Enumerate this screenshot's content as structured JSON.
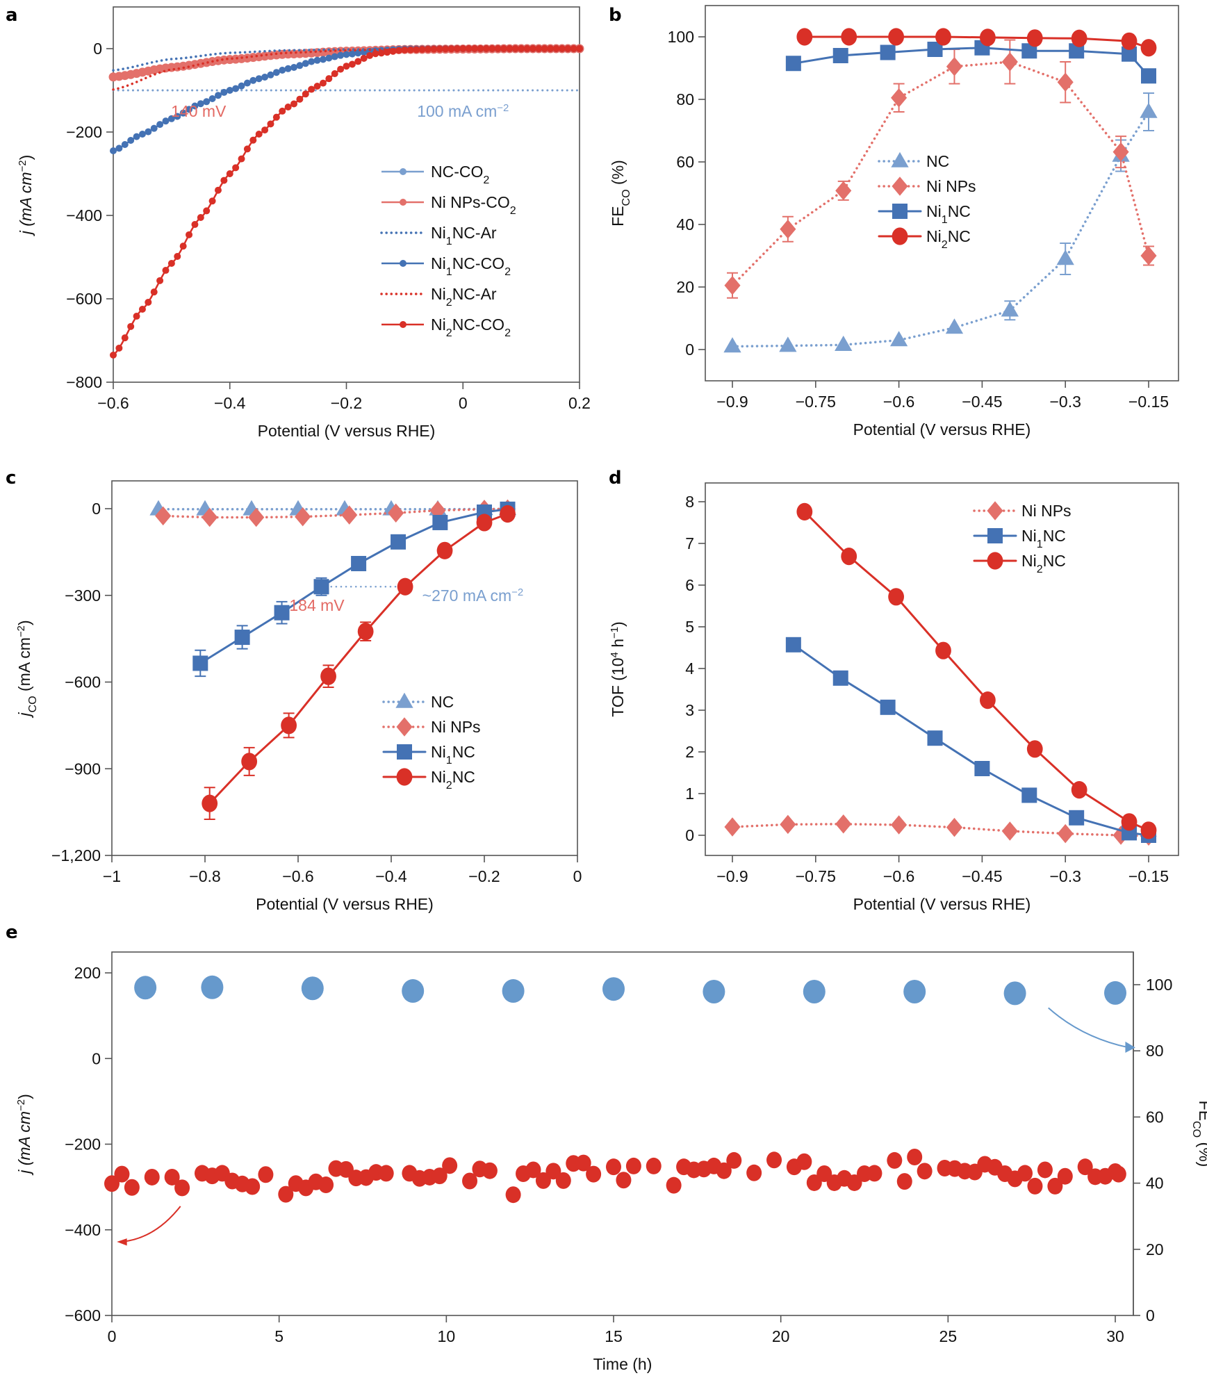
{
  "colors": {
    "nc": "#7a9fcf",
    "ni_nps": "#e3706a",
    "ni1nc": "#4472b4",
    "ni2nc": "#d93027",
    "fe_points": "#6699cc",
    "j_points": "#d93027",
    "annot_red": "#e36a64",
    "annot_blue": "#7a9fcf"
  },
  "chart_data": [
    {
      "panel": "a",
      "type": "line",
      "xlabel": "Potential (V versus RHE)",
      "ylabel": "j (mA cm⁻²)",
      "xlim": [
        -0.6,
        0.2
      ],
      "ylim": [
        -800,
        100
      ],
      "xticks": [
        -0.6,
        -0.4,
        -0.2,
        0,
        0.2
      ],
      "xtick_labels": [
        "−0.6",
        "−0.4",
        "−0.2",
        "0",
        "0.2"
      ],
      "yticks": [
        0,
        -200,
        -400,
        -600,
        -800
      ],
      "ytick_labels": [
        "0",
        "−200",
        "−400",
        "−600",
        "−800"
      ],
      "legend_position": "center-right",
      "annotations": [
        {
          "text": "140 mV",
          "x": -0.4,
          "y": -150,
          "color": "annot_red"
        },
        {
          "text": "100 mA cm⁻²",
          "x": 0.0,
          "y": -150,
          "color": "annot_blue"
        }
      ],
      "reference_line": {
        "y": -100,
        "style": "dotted",
        "color": "annot_blue"
      },
      "series": [
        {
          "name": "NC-CO₂",
          "style": "markers-line",
          "color": "nc",
          "x": [
            -0.6,
            -0.5,
            -0.4,
            -0.3,
            -0.2,
            -0.1,
            0,
            0.1,
            0.2
          ],
          "y": [
            -70,
            -45,
            -25,
            -12,
            -5,
            -2,
            -1,
            0,
            0
          ]
        },
        {
          "name": "Ni NPs-CO₂",
          "style": "markers-line",
          "color": "ni_nps",
          "x": [
            -0.6,
            -0.5,
            -0.4,
            -0.3,
            -0.2,
            -0.1,
            0,
            0.1,
            0.2
          ],
          "y": [
            -68,
            -45,
            -26,
            -13,
            -6,
            -2,
            -1,
            0,
            0
          ]
        },
        {
          "name": "Ni₁NC-Ar",
          "style": "dotted",
          "color": "ni1nc",
          "x": [
            -0.6,
            -0.5,
            -0.4,
            -0.3,
            -0.2,
            -0.1,
            0,
            0.1,
            0.2
          ],
          "y": [
            -52,
            -25,
            -10,
            -4,
            -2,
            -1,
            0,
            0,
            0
          ]
        },
        {
          "name": "Ni₁NC-CO₂",
          "style": "markers-line",
          "color": "ni1nc",
          "x": [
            -0.6,
            -0.55,
            -0.5,
            -0.45,
            -0.4,
            -0.35,
            -0.3,
            -0.25,
            -0.2,
            -0.15,
            -0.1,
            0,
            0.1,
            0.2
          ],
          "y": [
            -245,
            -205,
            -168,
            -132,
            -100,
            -72,
            -48,
            -28,
            -14,
            -5,
            -1,
            0,
            0,
            0
          ]
        },
        {
          "name": "Ni₂NC-Ar",
          "style": "dotted",
          "color": "ni2nc",
          "x": [
            -0.6,
            -0.5,
            -0.4,
            -0.3,
            -0.2,
            -0.1,
            0,
            0.1,
            0.2
          ],
          "y": [
            -98,
            -50,
            -24,
            -10,
            -4,
            -1,
            0,
            0,
            0
          ]
        },
        {
          "name": "Ni₂NC-CO₂",
          "style": "markers-line",
          "color": "ni2nc",
          "x": [
            -0.6,
            -0.55,
            -0.5,
            -0.45,
            -0.4,
            -0.35,
            -0.3,
            -0.25,
            -0.2,
            -0.15,
            -0.1,
            -0.05,
            0,
            0.1,
            0.2
          ],
          "y": [
            -735,
            -625,
            -515,
            -405,
            -300,
            -205,
            -140,
            -90,
            -42,
            -12,
            -3,
            -1,
            0,
            0,
            0
          ]
        }
      ]
    },
    {
      "panel": "b",
      "type": "line",
      "xlabel": "Potential (V versus RHE)",
      "ylabel": "FE_CO (%)",
      "xlim": [
        -0.97,
        -0.12
      ],
      "ylim": [
        -10,
        110
      ],
      "xticks": [
        -0.9,
        -0.75,
        -0.6,
        -0.45,
        -0.3,
        -0.15
      ],
      "xtick_labels": [
        "−0.9",
        "−0.75",
        "−0.6",
        "−0.45",
        "−0.3",
        "−0.15"
      ],
      "yticks": [
        0,
        20,
        40,
        60,
        80,
        100
      ],
      "ytick_labels": [
        "0",
        "20",
        "40",
        "60",
        "80",
        "100"
      ],
      "legend_position": "center",
      "series": [
        {
          "name": "NC",
          "marker": "triangle",
          "style": "dotted",
          "color": "nc",
          "x": [
            -0.9,
            -0.8,
            -0.7,
            -0.6,
            -0.5,
            -0.4,
            -0.3,
            -0.2,
            -0.15
          ],
          "y": [
            1,
            1.2,
            1.5,
            3,
            7,
            12.5,
            29,
            62,
            76
          ],
          "err": [
            0,
            0,
            0,
            0,
            0,
            3,
            5,
            5,
            6
          ]
        },
        {
          "name": "Ni NPs",
          "marker": "diamond",
          "style": "dotted",
          "color": "ni_nps",
          "x": [
            -0.9,
            -0.8,
            -0.7,
            -0.6,
            -0.5,
            -0.4,
            -0.3,
            -0.2,
            -0.15
          ],
          "y": [
            20.5,
            38.5,
            50.8,
            80.5,
            90.5,
            92,
            85.5,
            63.2,
            30
          ],
          "err": [
            4,
            4,
            3,
            4.5,
            5.5,
            7,
            6.5,
            5,
            3
          ]
        },
        {
          "name": "Ni₁NC",
          "marker": "square",
          "style": "solid",
          "color": "ni1nc",
          "x": [
            -0.79,
            -0.705,
            -0.62,
            -0.535,
            -0.45,
            -0.365,
            -0.28,
            -0.185,
            -0.15
          ],
          "y": [
            91.5,
            94,
            95,
            96,
            96.5,
            95.5,
            95.5,
            94.5,
            87.5
          ],
          "err": [
            0,
            0,
            0,
            0,
            0,
            0,
            0,
            0,
            0
          ]
        },
        {
          "name": "Ni₂NC",
          "marker": "circle",
          "style": "solid",
          "color": "ni2nc",
          "x": [
            -0.77,
            -0.69,
            -0.605,
            -0.52,
            -0.44,
            -0.355,
            -0.275,
            -0.185,
            -0.15
          ],
          "y": [
            100,
            100,
            100,
            100,
            99.8,
            99.6,
            99.5,
            98.6,
            96.5
          ],
          "err": [
            0,
            0,
            0,
            0,
            0,
            0,
            0,
            0,
            0
          ]
        }
      ]
    },
    {
      "panel": "c",
      "type": "line",
      "xlabel": "Potential (V versus RHE)",
      "ylabel": "j_CO (mA cm⁻²)",
      "xlim": [
        -1,
        0
      ],
      "ylim": [
        -1200,
        130
      ],
      "xticks": [
        -1,
        -0.8,
        -0.6,
        -0.4,
        -0.2,
        0
      ],
      "xtick_labels": [
        "−1",
        "−0.8",
        "−0.6",
        "−0.4",
        "−0.2",
        "0"
      ],
      "yticks": [
        0,
        -300,
        -600,
        -900,
        -1200
      ],
      "ytick_labels": [
        "0",
        "−300",
        "−600",
        "−900",
        "−1,200"
      ],
      "legend_position": "bottom-right",
      "annotations": [
        {
          "text": "184 mV",
          "x": -0.5,
          "y": -330,
          "color": "annot_red"
        },
        {
          "text": "~270 mA cm⁻²",
          "x": -0.18,
          "y": -300,
          "color": "annot_blue"
        }
      ],
      "reference_line": {
        "y": -270,
        "x_from": -0.55,
        "x_to": -0.37,
        "style": "dotted",
        "color": "annot_blue"
      },
      "series": [
        {
          "name": "NC",
          "marker": "triangle",
          "style": "dotted",
          "color": "nc",
          "x": [
            -0.9,
            -0.8,
            -0.7,
            -0.6,
            -0.5,
            -0.4,
            -0.3,
            -0.2,
            -0.15
          ],
          "y": [
            -2,
            -2,
            -2,
            -2,
            -2,
            -2,
            -2,
            -1,
            -1
          ],
          "err": [
            0,
            0,
            0,
            0,
            0,
            0,
            0,
            0,
            0
          ]
        },
        {
          "name": "Ni NPs",
          "marker": "diamond",
          "style": "dotted",
          "color": "ni_nps",
          "x": [
            -0.89,
            -0.79,
            -0.69,
            -0.59,
            -0.49,
            -0.39,
            -0.3,
            -0.2,
            -0.15
          ],
          "y": [
            -25,
            -30,
            -30,
            -28,
            -22,
            -15,
            -6,
            -2,
            -1
          ],
          "err": [
            0,
            0,
            0,
            0,
            0,
            0,
            0,
            0,
            0
          ]
        },
        {
          "name": "Ni₁NC",
          "marker": "square",
          "style": "solid",
          "color": "ni1nc",
          "x": [
            -0.81,
            -0.72,
            -0.635,
            -0.55,
            -0.47,
            -0.385,
            -0.295,
            -0.2,
            -0.15
          ],
          "y": [
            -535,
            -445,
            -360,
            -270,
            -190,
            -115,
            -48,
            -12,
            -2
          ],
          "err": [
            45,
            40,
            38,
            30,
            0,
            0,
            0,
            0,
            0
          ]
        },
        {
          "name": "Ni₂NC",
          "marker": "circle",
          "style": "solid",
          "color": "ni2nc",
          "x": [
            -0.79,
            -0.705,
            -0.62,
            -0.535,
            -0.455,
            -0.37,
            -0.285,
            -0.2,
            -0.15
          ],
          "y": [
            -1020,
            -875,
            -750,
            -580,
            -425,
            -270,
            -145,
            -48,
            -18
          ],
          "err": [
            55,
            48,
            42,
            38,
            32,
            0,
            0,
            0,
            0
          ]
        }
      ]
    },
    {
      "panel": "d",
      "type": "line",
      "xlabel": "Potential (V versus RHE)",
      "ylabel": "TOF (10⁴ h⁻¹)",
      "xlim": [
        -0.97,
        -0.12
      ],
      "ylim": [
        -0.5,
        8.5
      ],
      "xticks": [
        -0.9,
        -0.75,
        -0.6,
        -0.45,
        -0.3,
        -0.15
      ],
      "xtick_labels": [
        "−0.9",
        "−0.75",
        "−0.6",
        "−0.45",
        "−0.3",
        "−0.15"
      ],
      "yticks": [
        0,
        1,
        2,
        3,
        4,
        5,
        6,
        7,
        8
      ],
      "ytick_labels": [
        "0",
        "1",
        "2",
        "3",
        "4",
        "5",
        "6",
        "7",
        "8"
      ],
      "legend_position": "top-right",
      "series": [
        {
          "name": "Ni NPs",
          "marker": "diamond",
          "style": "dotted",
          "color": "ni_nps",
          "x": [
            -0.9,
            -0.8,
            -0.7,
            -0.6,
            -0.5,
            -0.4,
            -0.3,
            -0.2,
            -0.15
          ],
          "y": [
            0.2,
            0.26,
            0.27,
            0.25,
            0.19,
            0.1,
            0.04,
            0.0,
            -0.02
          ]
        },
        {
          "name": "Ni₁NC",
          "marker": "square",
          "style": "solid",
          "color": "ni1nc",
          "x": [
            -0.79,
            -0.705,
            -0.62,
            -0.535,
            -0.45,
            -0.365,
            -0.28,
            -0.185,
            -0.15
          ],
          "y": [
            4.57,
            3.77,
            3.07,
            2.33,
            1.6,
            0.96,
            0.42,
            0.06,
            0.0
          ]
        },
        {
          "name": "Ni₂NC",
          "marker": "circle",
          "style": "solid",
          "color": "ni2nc",
          "x": [
            -0.77,
            -0.69,
            -0.605,
            -0.52,
            -0.44,
            -0.355,
            -0.275,
            -0.185,
            -0.15
          ],
          "y": [
            7.76,
            6.69,
            5.72,
            4.43,
            3.24,
            2.07,
            1.09,
            0.32,
            0.12
          ]
        }
      ]
    },
    {
      "panel": "e",
      "type": "scatter",
      "xlabel": "Time (h)",
      "ylabel": "j (mA cm⁻²)",
      "y2label": "FE_CO (%)",
      "xlim": [
        0,
        30.7
      ],
      "ylim": [
        -600,
        250
      ],
      "y2lim": [
        0,
        110
      ],
      "xticks": [
        0,
        5,
        10,
        15,
        20,
        25,
        30
      ],
      "xtick_labels": [
        "0",
        "5",
        "10",
        "15",
        "20",
        "25",
        "30"
      ],
      "yticks": [
        200,
        0,
        -200,
        -400,
        -600
      ],
      "ytick_labels": [
        "200",
        "0",
        "−200",
        "−400",
        "−600"
      ],
      "y2ticks": [
        0,
        20,
        40,
        60,
        80,
        100
      ],
      "y2tick_labels": [
        "0",
        "20",
        "40",
        "60",
        "80",
        "100"
      ],
      "series": [
        {
          "name": "FE_CO",
          "axis": "right",
          "color": "fe_points",
          "x": [
            1,
            3,
            6,
            9,
            12,
            15,
            18,
            21,
            24,
            27,
            30
          ],
          "y": [
            99.1,
            99.2,
            98.9,
            98.1,
            98.1,
            98.7,
            97.9,
            97.9,
            97.9,
            97.4,
            97.5
          ]
        },
        {
          "name": "j",
          "axis": "left",
          "color": "j_points",
          "x": [
            0,
            0.3,
            0.6,
            1.2,
            1.8,
            2.1,
            2.7,
            3.0,
            3.3,
            3.6,
            3.9,
            4.2,
            4.6,
            5.2,
            5.5,
            5.8,
            6.1,
            6.4,
            6.7,
            7.0,
            7.3,
            7.6,
            7.9,
            8.2,
            8.9,
            9.2,
            9.5,
            9.8,
            10.1,
            10.7,
            11.0,
            11.3,
            12.0,
            12.3,
            12.6,
            12.9,
            13.2,
            13.5,
            13.8,
            14.1,
            14.4,
            15.0,
            15.3,
            15.6,
            16.2,
            16.8,
            17.1,
            17.4,
            17.7,
            18.0,
            18.3,
            18.6,
            19.2,
            19.8,
            20.4,
            20.7,
            21.0,
            21.3,
            21.6,
            21.9,
            22.2,
            22.5,
            22.8,
            23.4,
            23.7,
            24.0,
            24.3,
            24.9,
            25.2,
            25.5,
            25.8,
            26.1,
            26.4,
            26.7,
            27.0,
            27.3,
            27.6,
            27.9,
            28.2,
            28.5,
            29.1,
            29.4,
            29.7,
            30.0,
            30.1
          ],
          "y": [
            -292,
            -270,
            -301,
            -277,
            -277,
            -302,
            -268,
            -274,
            -268,
            -286,
            -293,
            -299,
            -271,
            -317,
            -292,
            -302,
            -288,
            -295,
            -257,
            -259,
            -279,
            -278,
            -266,
            -268,
            -268,
            -280,
            -277,
            -274,
            -250,
            -286,
            -258,
            -262,
            -318,
            -269,
            -260,
            -285,
            -263,
            -285,
            -245,
            -244,
            -270,
            -253,
            -284,
            -251,
            -251,
            -296,
            -253,
            -260,
            -258,
            -251,
            -262,
            -238,
            -267,
            -237,
            -253,
            -241,
            -290,
            -269,
            -290,
            -280,
            -290,
            -269,
            -268,
            -238,
            -287,
            -230,
            -263,
            -256,
            -257,
            -263,
            -265,
            -247,
            -254,
            -269,
            -281,
            -268,
            -298,
            -260,
            -298,
            -275,
            -253,
            -276,
            -275,
            -264,
            -270
          ]
        }
      ]
    }
  ],
  "legends": {
    "a": [
      "NC-CO₂",
      "Ni NPs-CO₂",
      "Ni₁NC-Ar",
      "Ni₁NC-CO₂",
      "Ni₂NC-Ar",
      "Ni₂NC-CO₂"
    ],
    "b": [
      "NC",
      "Ni NPs",
      "Ni₁NC",
      "Ni₂NC"
    ],
    "c": [
      "NC",
      "Ni NPs",
      "Ni₁NC",
      "Ni₂NC"
    ],
    "d": [
      "Ni NPs",
      "Ni₁NC",
      "Ni₂NC"
    ]
  },
  "panel_letters": [
    "a",
    "b",
    "c",
    "d",
    "e"
  ]
}
